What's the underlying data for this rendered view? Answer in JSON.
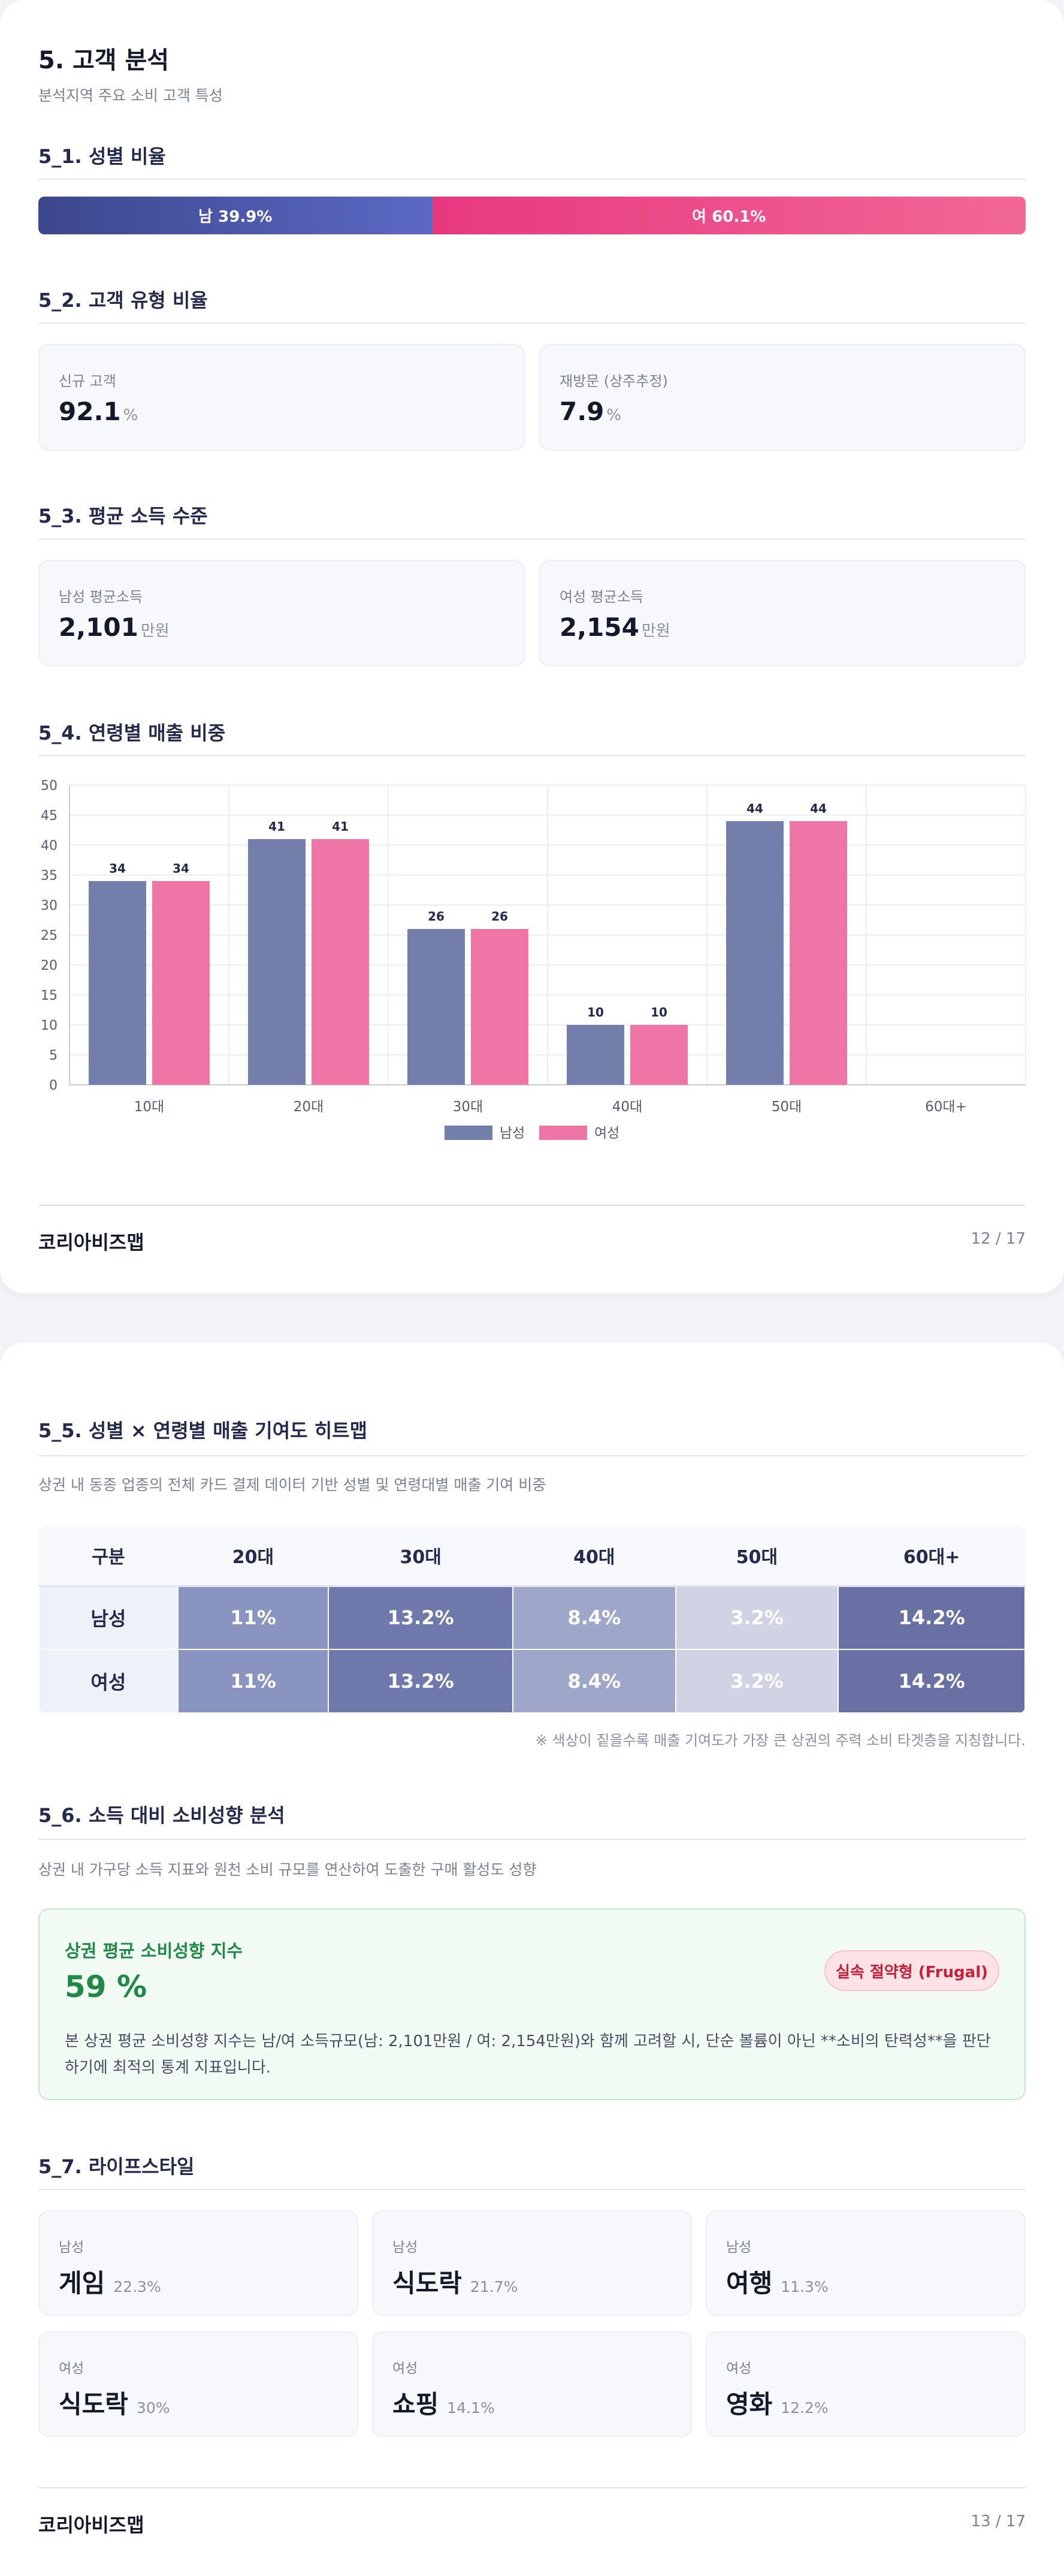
{
  "page1": {
    "title": "5. 고객 분석",
    "subtitle": "분석지역 주요 소비 고객 특성",
    "gender": {
      "heading": "5_1. 성별 비율",
      "male_label": "남 39.9%",
      "female_label": "여 60.1%",
      "male_share": 39.9,
      "female_share": 60.1,
      "male_color": "#3c478d",
      "female_color": "#e8387f"
    },
    "customer_type": {
      "heading": "5_2. 고객 유형 비율",
      "cards": [
        {
          "label": "신규 고객",
          "value": "92.1",
          "unit": "%"
        },
        {
          "label": "재방문 (상주추정)",
          "value": "7.9",
          "unit": "%"
        }
      ]
    },
    "income": {
      "heading": "5_3. 평균 소득 수준",
      "cards": [
        {
          "label": "남성 평균소득",
          "value": "2,101",
          "unit": "만원"
        },
        {
          "label": "여성 평균소득",
          "value": "2,154",
          "unit": "만원"
        }
      ]
    },
    "age_chart_heading": "5_4. 연령별 매출 비중",
    "footer": {
      "logo": "코리아비즈맵",
      "page": "12 / 17"
    }
  },
  "chart_data": {
    "type": "bar",
    "categories": [
      "10대",
      "20대",
      "30대",
      "40대",
      "50대",
      "60대+"
    ],
    "series": [
      {
        "name": "남성",
        "values": [
          34,
          41,
          26,
          10,
          44,
          null
        ],
        "color": "#737eab"
      },
      {
        "name": "여성",
        "values": [
          34,
          41,
          26,
          10,
          44,
          null
        ],
        "color": "#ef75a6"
      }
    ],
    "ylim": [
      0,
      50
    ],
    "yticks": [
      0,
      5,
      10,
      15,
      20,
      25,
      30,
      35,
      40,
      45,
      50
    ],
    "grid": true,
    "legend": "bottom-center"
  },
  "page2": {
    "heatmap": {
      "heading": "5_5. 성별 × 연령별 매출 기여도 히트맵",
      "description": "상권 내 동종 업종의 전체 카드 결제 데이터 기반 성별 및 연령대별 매출 기여 비중",
      "header": [
        "구분",
        "20대",
        "30대",
        "40대",
        "50대",
        "60대+"
      ],
      "rows": [
        {
          "label": "남성",
          "cells": [
            "11%",
            "13.2%",
            "8.4%",
            "3.2%",
            "14.2%"
          ]
        },
        {
          "label": "여성",
          "cells": [
            "11%",
            "13.2%",
            "8.4%",
            "3.2%",
            "14.2%"
          ]
        }
      ],
      "cell_colors": [
        "#8a94c1",
        "#6f79ab",
        "#9ea6ca",
        "#d0d3e4",
        "#6870a4"
      ],
      "note": "※ 색상이 짙을수록 매출 기여도가 가장 큰 상권의 주력 소비 타겟층을 지칭합니다."
    },
    "spending": {
      "heading": "5_6. 소득 대비 소비성향 분석",
      "description": "상권 내 가구당 소득 지표와 원천 소비 규모를 연산하여 도출한 구매 활성도 성향",
      "box_title": "상권 평균 소비성향 지수",
      "value": "59 %",
      "badge": "실속 절약형 (Frugal)",
      "detail": "본 상권 평균 소비성향 지수는 남/여 소득규모(남: 2,101만원 / 여: 2,154만원)와 함께 고려할 시, 단순 볼륨이 아닌 **소비의 탄력성**을 판단하기에 최적의 통계 지표입니다."
    },
    "lifestyle": {
      "heading": "5_7. 라이프스타일",
      "cards": [
        {
          "gender": "남성",
          "name": "게임",
          "pct": "22.3%"
        },
        {
          "gender": "남성",
          "name": "식도락",
          "pct": "21.7%"
        },
        {
          "gender": "남성",
          "name": "여행",
          "pct": "11.3%"
        },
        {
          "gender": "여성",
          "name": "식도락",
          "pct": "30%"
        },
        {
          "gender": "여성",
          "name": "쇼핑",
          "pct": "14.1%"
        },
        {
          "gender": "여성",
          "name": "영화",
          "pct": "12.2%"
        }
      ]
    },
    "footer": {
      "logo": "코리아비즈맵",
      "page": "13 / 17"
    }
  }
}
